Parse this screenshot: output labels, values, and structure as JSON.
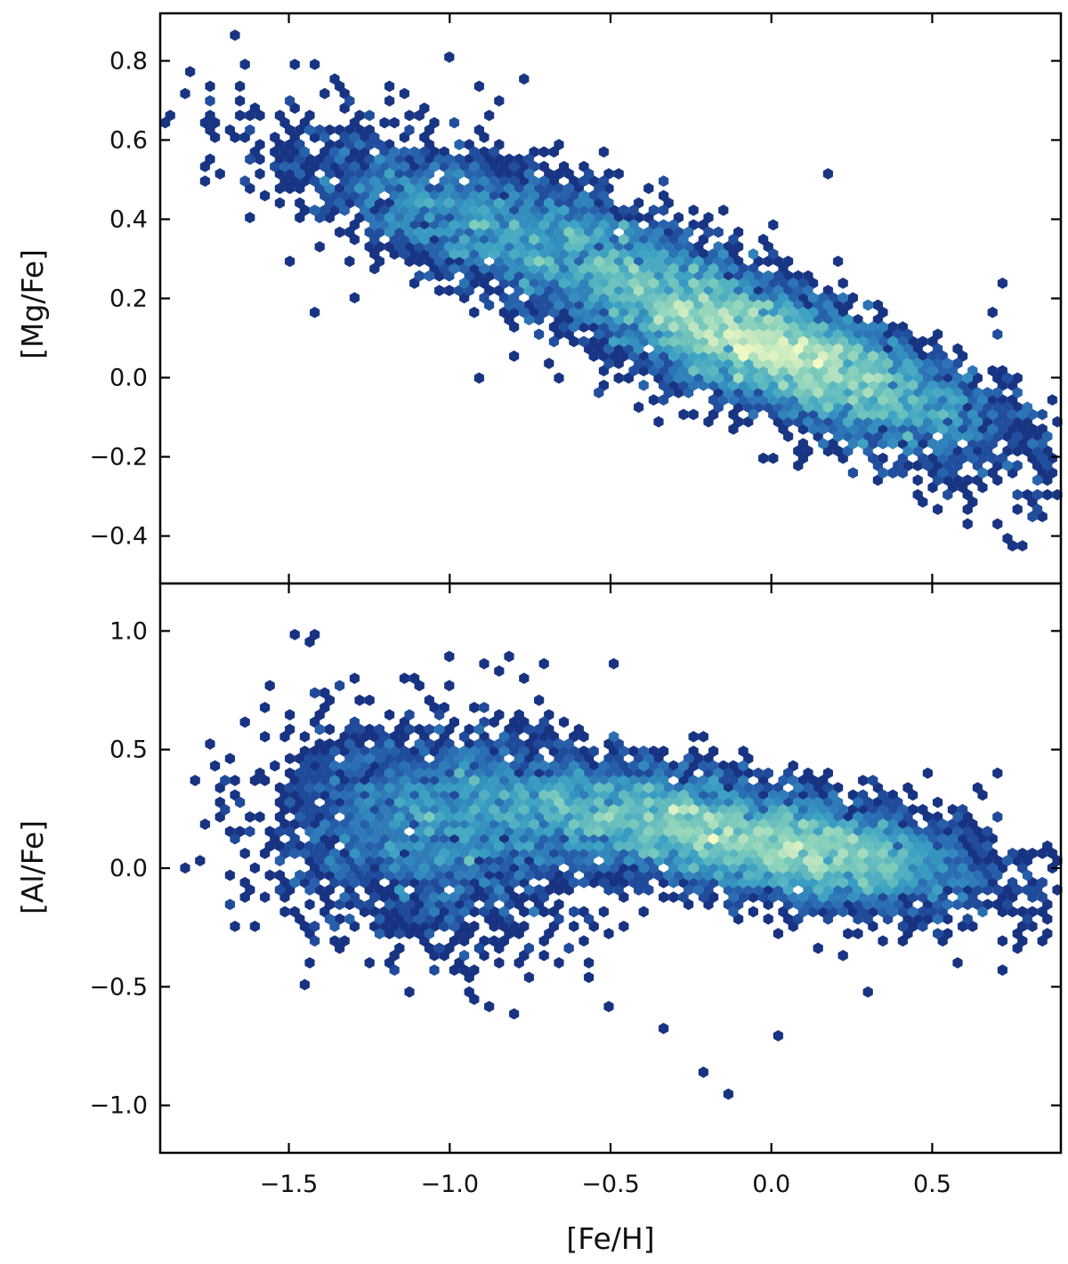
{
  "chart_data": {
    "type": "hexbin",
    "colormap": [
      "#0b1a56",
      "#1b3b8f",
      "#2a6db3",
      "#3aa0c4",
      "#7fcdbb",
      "#f5fbc4"
    ],
    "xlabel": "[Fe/H]",
    "xlim": [
      -1.9,
      0.9
    ],
    "xticks": [
      -1.5,
      -1.0,
      -0.5,
      0.0,
      0.5
    ],
    "xtick_labels": [
      "−1.5",
      "−1.0",
      "−0.5",
      "0.0",
      "0.5"
    ],
    "panels": [
      {
        "name": "mg-fe-panel",
        "ylabel": "[Mg/Fe]",
        "ylim": [
          -0.52,
          0.92
        ],
        "yticks": [
          -0.4,
          -0.2,
          0.0,
          0.2,
          0.4,
          0.6,
          0.8
        ],
        "ytick_labels": [
          "−0.4",
          "−0.2",
          "0.0",
          "0.2",
          "0.4",
          "0.6",
          "0.8"
        ],
        "distribution": {
          "components": [
            {
              "weight": 0.55,
              "fe_mean": -0.15,
              "val_mean": 0.15,
              "sd_major": 0.42,
              "sd_minor": 0.085,
              "slope": -0.38
            },
            {
              "weight": 0.3,
              "fe_mean": 0.05,
              "val_mean": 0.04,
              "sd_major": 0.3,
              "sd_minor": 0.07,
              "slope": -0.2
            },
            {
              "weight": 0.15,
              "fe_mean": -0.95,
              "val_mean": 0.38,
              "sd_major": 0.3,
              "sd_minor": 0.08,
              "slope": -0.3
            }
          ],
          "density_peak": {
            "fe": 0.0,
            "val": 0.04
          }
        },
        "outliers": [
          [
            -1.0,
            0.81
          ],
          [
            -0.92,
            0.74
          ],
          [
            -0.78,
            0.75
          ],
          [
            -1.13,
            0.71
          ],
          [
            -0.85,
            0.69
          ],
          [
            -1.42,
            0.17
          ],
          [
            -1.31,
            0.2
          ],
          [
            -0.9,
            0.0
          ],
          [
            -0.55,
            -0.04
          ],
          [
            0.18,
            0.51
          ],
          [
            0.72,
            0.23
          ],
          [
            0.68,
            0.16
          ],
          [
            0.64,
            -0.12
          ],
          [
            0.33,
            -0.25
          ],
          [
            0.25,
            -0.24
          ],
          [
            0.0,
            -0.2
          ],
          [
            -1.52,
            0.55
          ],
          [
            -1.47,
            0.6
          ],
          [
            -0.02,
            -0.21
          ]
        ]
      },
      {
        "name": "al-fe-panel",
        "ylabel": "[Al/Fe]",
        "ylim": [
          -1.2,
          1.2
        ],
        "yticks": [
          -1.0,
          -0.5,
          0.0,
          0.5,
          1.0
        ],
        "ytick_labels": [
          "−1.0",
          "−0.5",
          "0.0",
          "0.5",
          "1.0"
        ],
        "distribution": {
          "components": [
            {
              "weight": 0.6,
              "fe_mean": -0.2,
              "val_mean": 0.16,
              "sd_major": 0.42,
              "sd_minor": 0.12,
              "slope": -0.22
            },
            {
              "weight": 0.25,
              "fe_mean": -1.05,
              "val_mean": 0.15,
              "sd_major": 0.25,
              "sd_minor": 0.22,
              "slope": 0.0
            },
            {
              "weight": 0.15,
              "fe_mean": 0.2,
              "val_mean": 0.05,
              "sd_major": 0.2,
              "sd_minor": 0.1,
              "slope": -0.1
            }
          ],
          "density_peak": {
            "fe": -0.2,
            "val": 0.2
          }
        },
        "outliers": [
          [
            -1.43,
            1.0
          ],
          [
            -1.47,
            0.97
          ],
          [
            -1.44,
            0.95
          ],
          [
            -0.99,
            0.9
          ],
          [
            -0.9,
            0.85
          ],
          [
            -0.86,
            0.82
          ],
          [
            -0.5,
            0.85
          ],
          [
            -0.14,
            -0.94
          ],
          [
            -0.22,
            -0.85
          ],
          [
            0.03,
            -0.72
          ],
          [
            -0.34,
            -0.67
          ],
          [
            -0.81,
            -0.6
          ],
          [
            -0.89,
            -0.58
          ],
          [
            -0.51,
            -0.58
          ],
          [
            -1.13,
            -0.53
          ],
          [
            0.3,
            -0.52
          ],
          [
            0.71,
            0.4
          ],
          [
            0.67,
            0.15
          ],
          [
            -1.52,
            0.14
          ],
          [
            -1.5,
            -0.05
          ],
          [
            -1.35,
            -0.33
          ],
          [
            -1.47,
            -0.2
          ]
        ]
      }
    ]
  }
}
